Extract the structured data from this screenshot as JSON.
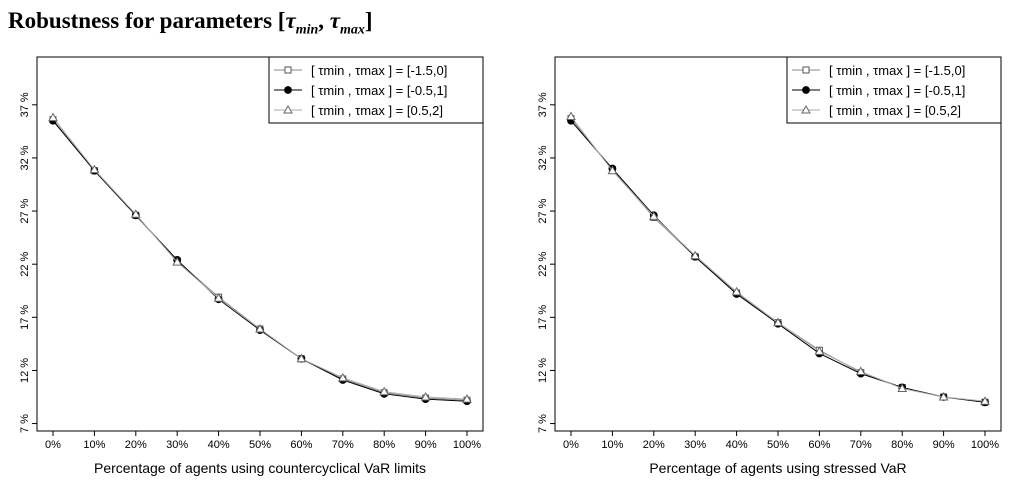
{
  "title": {
    "prefix": "Robustness for parameters [",
    "tau1": "τ",
    "sub1": "min",
    "sep": ", ",
    "tau2": "τ",
    "sub2": "max",
    "suffix": "]"
  },
  "chart_data": [
    {
      "type": "line",
      "xlabel": "Percentage of agents using countercyclical VaR limits",
      "ylabel": "",
      "categories": [
        "0%",
        "10%",
        "20%",
        "30%",
        "40%",
        "50%",
        "60%",
        "70%",
        "80%",
        "90%",
        "100%"
      ],
      "yticks": [
        7,
        12,
        17,
        22,
        27,
        32,
        37
      ],
      "ytick_labels": [
        "7 %",
        "12 %",
        "17 %",
        "22 %",
        "27 %",
        "32 %",
        "37 %"
      ],
      "ylim": [
        6.3,
        41.5
      ],
      "legend_position": "top-right",
      "series": [
        {
          "name": "[ τmin , τmax ] = [-1.5,0]",
          "marker": "square",
          "values": [
            35.6,
            30.8,
            26.6,
            22.3,
            18.9,
            15.9,
            13.1,
            11.2,
            9.9,
            9.4,
            9.2
          ]
        },
        {
          "name": "[ τmin , τmax ] = [-0.5,1]",
          "marker": "circle",
          "values": [
            35.5,
            30.8,
            26.6,
            22.4,
            18.7,
            15.8,
            13.1,
            11.1,
            9.8,
            9.3,
            9.1
          ]
        },
        {
          "name": "[ τmin , τmax ] = [0.5,2]",
          "marker": "triangle",
          "values": [
            35.8,
            30.9,
            26.7,
            22.2,
            18.8,
            15.9,
            13.1,
            11.3,
            10.0,
            9.5,
            9.3
          ]
        }
      ],
      "grid": false
    },
    {
      "type": "line",
      "xlabel": "Percentage of agents using stressed VaR",
      "ylabel": "",
      "categories": [
        "0%",
        "10%",
        "20%",
        "30%",
        "40%",
        "50%",
        "60%",
        "70%",
        "80%",
        "90%",
        "100%"
      ],
      "yticks": [
        7,
        12,
        17,
        22,
        27,
        32,
        37
      ],
      "ytick_labels": [
        "7 %",
        "12 %",
        "17 %",
        "22 %",
        "27 %",
        "32 %",
        "37 %"
      ],
      "ylim": [
        6.3,
        41.5
      ],
      "legend_position": "top-right",
      "series": [
        {
          "name": "[ τmin , τmax ] = [-1.5,0]",
          "marker": "square",
          "values": [
            35.7,
            30.9,
            26.4,
            22.7,
            19.3,
            16.5,
            13.9,
            11.8,
            10.4,
            9.5,
            9.0
          ]
        },
        {
          "name": "[ τmin , τmax ] = [-0.5,1]",
          "marker": "circle",
          "values": [
            35.5,
            31.0,
            26.6,
            22.7,
            19.2,
            16.4,
            13.6,
            11.7,
            10.4,
            9.5,
            9.0
          ]
        },
        {
          "name": "[ τmin , τmax ] = [0.5,2]",
          "marker": "triangle",
          "values": [
            35.9,
            30.8,
            26.5,
            22.8,
            19.4,
            16.5,
            13.8,
            11.9,
            10.3,
            9.5,
            9.1
          ]
        }
      ],
      "grid": false
    }
  ]
}
